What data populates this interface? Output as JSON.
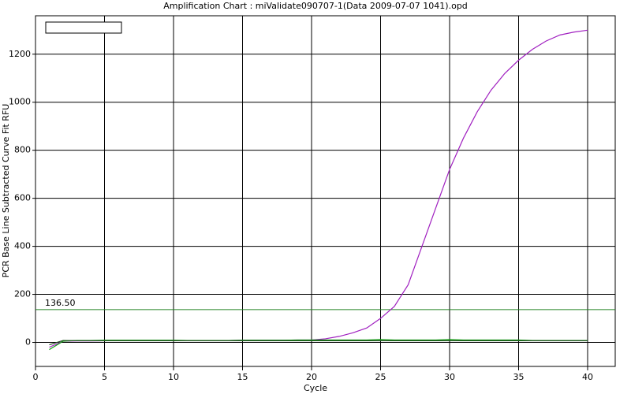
{
  "chart_data": {
    "type": "line",
    "title": "Amplification Chart : miValidate090707-1(Data 2009-07-07 1041).opd",
    "x_label": "Cycle",
    "y_label": "PCR Base Line Subtracted Curve Fit RFU",
    "x": [
      1,
      2,
      3,
      4,
      5,
      6,
      7,
      8,
      9,
      10,
      11,
      12,
      13,
      14,
      15,
      16,
      17,
      18,
      19,
      20,
      21,
      22,
      23,
      24,
      25,
      26,
      27,
      28,
      29,
      30,
      31,
      32,
      33,
      34,
      35,
      36,
      37,
      38,
      39,
      40
    ],
    "series": [
      {
        "color": "#a020c0",
        "values": [
          -20,
          5,
          6,
          6,
          7,
          7,
          7,
          8,
          8,
          8,
          8,
          8,
          8,
          8,
          9,
          9,
          9,
          9,
          10,
          10,
          15,
          25,
          40,
          60,
          100,
          150,
          240,
          400,
          560,
          720,
          850,
          960,
          1050,
          1120,
          1175,
          1220,
          1255,
          1280,
          1292,
          1300
        ]
      },
      {
        "color": "#10a010",
        "values": [
          -30,
          5,
          8,
          8,
          9,
          9,
          9,
          9,
          9,
          9,
          8,
          8,
          8,
          8,
          9,
          9,
          9,
          9,
          10,
          10,
          10,
          10,
          10,
          10,
          12,
          10,
          10,
          10,
          10,
          12,
          10,
          10,
          10,
          10,
          10,
          8,
          8,
          8,
          8,
          8
        ]
      },
      {
        "color": "#205020",
        "values": [
          -10,
          8,
          7,
          7,
          7,
          7,
          7,
          7,
          7,
          7,
          7,
          7,
          7,
          7,
          7,
          7,
          7,
          7,
          7,
          7,
          7,
          7,
          7,
          7,
          7,
          7,
          7,
          7,
          7,
          7,
          7,
          7,
          7,
          7,
          7,
          7,
          7,
          7,
          7,
          7
        ]
      }
    ],
    "threshold": {
      "value": 136.5,
      "label": "136.50",
      "color": "#208020"
    },
    "xlim": [
      0,
      42
    ],
    "xticks": [
      0,
      5,
      10,
      15,
      20,
      25,
      30,
      35,
      40
    ],
    "ylim": [
      -100,
      1360
    ],
    "yticks": [
      0,
      200,
      400,
      600,
      800,
      1000,
      1200
    ],
    "grid": true
  }
}
